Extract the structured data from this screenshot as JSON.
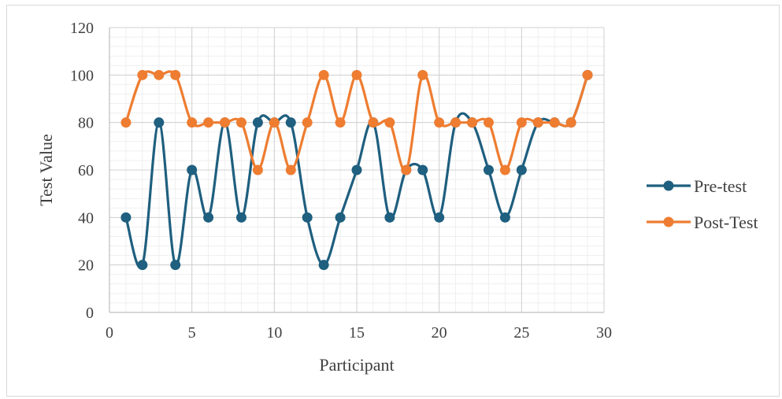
{
  "chart_data": {
    "type": "line",
    "title": "",
    "xlabel": "Participant",
    "ylabel": "Test Value",
    "xlim": [
      0,
      30
    ],
    "ylim": [
      0,
      120
    ],
    "xticks": [
      0,
      5,
      10,
      15,
      20,
      25,
      30
    ],
    "yticks": [
      0,
      20,
      40,
      60,
      80,
      100,
      120
    ],
    "grid": true,
    "smooth": true,
    "legend_position": "right",
    "x": [
      1,
      2,
      3,
      4,
      5,
      6,
      7,
      8,
      9,
      10,
      11,
      12,
      13,
      14,
      15,
      16,
      17,
      18,
      19,
      20,
      21,
      22,
      23,
      24,
      25,
      26,
      27,
      28,
      29
    ],
    "series": [
      {
        "name": "Pre-test",
        "color": "#1f5f7f",
        "values": [
          40,
          20,
          80,
          20,
          60,
          40,
          80,
          40,
          80,
          80,
          80,
          40,
          20,
          40,
          60,
          80,
          40,
          60,
          60,
          40,
          80,
          80,
          60,
          40,
          60,
          80,
          80,
          80,
          100
        ]
      },
      {
        "name": "Post-Test",
        "color": "#ee7d31",
        "values": [
          80,
          100,
          100,
          100,
          80,
          80,
          80,
          80,
          60,
          80,
          60,
          80,
          100,
          80,
          100,
          80,
          80,
          60,
          100,
          80,
          80,
          80,
          80,
          60,
          80,
          80,
          80,
          80,
          100
        ]
      }
    ]
  }
}
